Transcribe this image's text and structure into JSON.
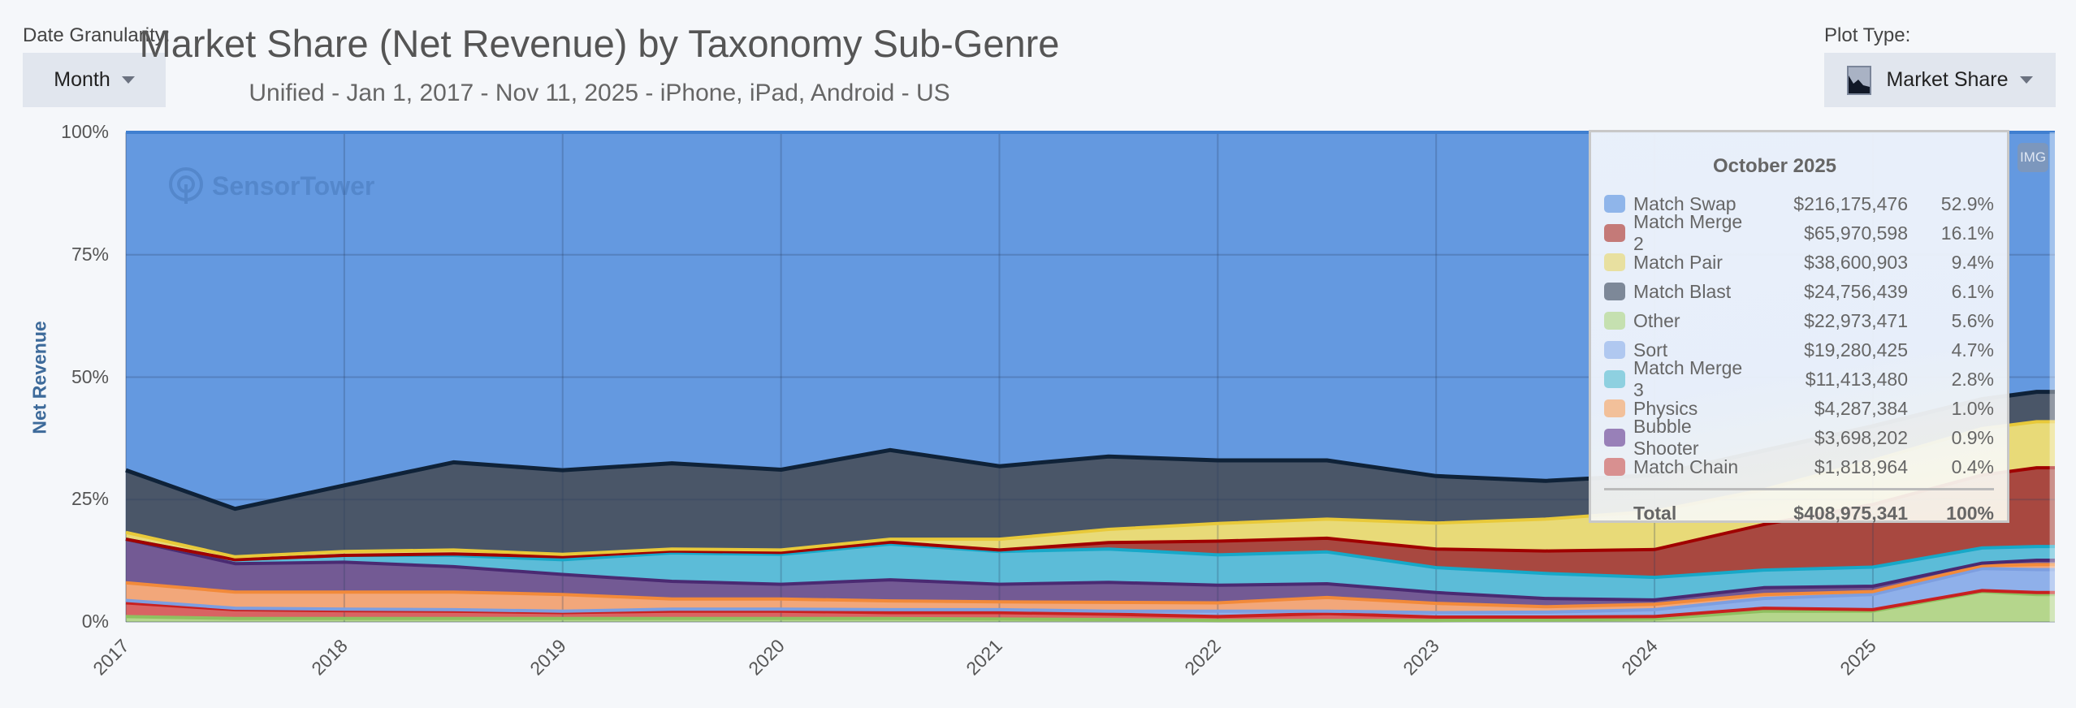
{
  "controls": {
    "date_granularity_label": "Date Granularity:",
    "date_granularity_value": "Month",
    "plot_type_label": "Plot Type:",
    "plot_type_value": "Market Share",
    "plot_type_icon": "area-chart-icon",
    "export_button": "IMG"
  },
  "watermark": "SensorTower",
  "tooltip": {
    "title": "October 2025",
    "rows": [
      {
        "name": "Match Swap",
        "revenue": "$216,175,476",
        "share": "52.9%",
        "color": "#8fb5ea"
      },
      {
        "name": "Match Merge 2",
        "revenue": "$65,970,598",
        "share": "16.1%",
        "color": "#c47a78"
      },
      {
        "name": "Match Pair",
        "revenue": "$38,600,903",
        "share": "9.4%",
        "color": "#e8e0a0"
      },
      {
        "name": "Match Blast",
        "revenue": "$24,756,439",
        "share": "6.1%",
        "color": "#7d8898"
      },
      {
        "name": "Other",
        "revenue": "$22,973,471",
        "share": "5.6%",
        "color": "#c5e0b0"
      },
      {
        "name": "Sort",
        "revenue": "$19,280,425",
        "share": "4.7%",
        "color": "#b0c8f0"
      },
      {
        "name": "Match Merge 3",
        "revenue": "$11,413,480",
        "share": "2.8%",
        "color": "#8ed0e0"
      },
      {
        "name": "Physics",
        "revenue": "$4,287,384",
        "share": "1.0%",
        "color": "#f2c09a"
      },
      {
        "name": "Bubble Shooter",
        "revenue": "$3,698,202",
        "share": "0.9%",
        "color": "#9880b8"
      },
      {
        "name": "Match Chain",
        "revenue": "$1,818,964",
        "share": "0.4%",
        "color": "#d89090"
      }
    ],
    "total_label": "Total",
    "total_revenue": "$408,975,341",
    "total_share": "100%"
  },
  "chart_data": {
    "type": "area",
    "stacked": "percent",
    "title": "Market Share (Net Revenue) by Taxonomy Sub-Genre",
    "subtitle": "Unified - Jan 1, 2017 - Nov 11, 2025 - iPhone, iPad, Android - US",
    "ylabel": "Net Revenue",
    "xlabel": "",
    "ylim": [
      0,
      100
    ],
    "xlim": [
      "2017-01",
      "2025-11"
    ],
    "y_ticks": [
      "0%",
      "25%",
      "50%",
      "75%",
      "100%"
    ],
    "x_ticks": [
      "2017",
      "2018",
      "2019",
      "2020",
      "2021",
      "2022",
      "2023",
      "2024",
      "2025"
    ],
    "grid": true,
    "x": [
      "2017-01",
      "2017-07",
      "2018-01",
      "2018-07",
      "2019-01",
      "2019-07",
      "2020-01",
      "2020-07",
      "2021-01",
      "2021-07",
      "2022-01",
      "2022-07",
      "2023-01",
      "2023-07",
      "2024-01",
      "2024-07",
      "2025-01",
      "2025-07",
      "2025-10"
    ],
    "series": [
      {
        "name": "Other",
        "fill": "#b5d68c",
        "line": "#8fc060",
        "values": [
          1.1,
          0.7,
          0.7,
          0.7,
          0.7,
          0.7,
          0.7,
          0.7,
          0.6,
          0.5,
          0.3,
          0.3,
          0.3,
          0.4,
          0.6,
          2.2,
          2.2,
          6.2,
          5.6
        ]
      },
      {
        "name": "Match Chain",
        "fill": "#d96363",
        "line": "#c82020",
        "values": [
          2.8,
          1.8,
          1.6,
          1.5,
          1.2,
          1.5,
          1.5,
          1.2,
          1.3,
          1.1,
          0.8,
          1.4,
          0.7,
          0.6,
          0.5,
          0.6,
          0.3,
          0.2,
          0.4
        ]
      },
      {
        "name": "Sort",
        "fill": "#8fb0ea",
        "line": "#7d9ee0",
        "values": [
          0.5,
          0.3,
          0.3,
          0.3,
          0.3,
          0.4,
          0.4,
          0.6,
          0.6,
          0.6,
          1.1,
          0.5,
          0.9,
          1.0,
          1.4,
          2.0,
          3.1,
          4.5,
          4.7
        ]
      },
      {
        "name": "Physics",
        "fill": "#f2a77a",
        "line": "#f28a3a",
        "values": [
          3.6,
          3.3,
          3.5,
          3.6,
          3.4,
          2.1,
          2.1,
          1.8,
          1.6,
          1.8,
          1.7,
          2.8,
          1.9,
          1.1,
          1.1,
          0.8,
          0.6,
          0.6,
          1.0
        ]
      },
      {
        "name": "Bubble Shooter",
        "fill": "#735a94",
        "line": "#4a2a72",
        "values": [
          8.9,
          5.8,
          6.1,
          5.2,
          4.1,
          3.6,
          3.0,
          4.3,
          3.6,
          4.1,
          3.6,
          2.8,
          2.2,
          1.7,
          0.9,
          1.4,
          1.1,
          0.5,
          0.9
        ]
      },
      {
        "name": "Match Merge 3",
        "fill": "#5cbcd8",
        "line": "#17a8c8",
        "values": [
          0,
          0.8,
          1.4,
          2.3,
          3.0,
          5.8,
          6.1,
          7.3,
          6.7,
          6.8,
          6.2,
          6.5,
          5.1,
          5.1,
          4.6,
          3.6,
          3.9,
          3.1,
          2.8
        ]
      },
      {
        "name": "Match Merge 2",
        "fill": "#a84840",
        "line": "#a00000",
        "values": [
          0,
          0,
          0,
          0.3,
          0.6,
          0.4,
          0.4,
          0.4,
          0.3,
          1.3,
          2.8,
          2.8,
          3.8,
          4.6,
          5.7,
          9.3,
          12.8,
          14.9,
          16.1
        ]
      },
      {
        "name": "Match Pair",
        "fill": "#e8da78",
        "line": "#e8c93a",
        "values": [
          1.4,
          0.6,
          0.8,
          0.8,
          0.5,
          0.4,
          0.5,
          0.6,
          2.2,
          2.7,
          3.6,
          3.9,
          5.3,
          6.5,
          7.8,
          7.1,
          9.0,
          9.5,
          9.4
        ]
      },
      {
        "name": "Match Blast",
        "fill": "#4a5668",
        "line": "#0f2238",
        "values": [
          12.7,
          9.8,
          13.5,
          17.9,
          17.2,
          17.5,
          16.4,
          18.2,
          14.9,
          14.9,
          12.9,
          12.0,
          9.6,
          7.8,
          7.4,
          8.0,
          7.0,
          6.0,
          6.1
        ]
      },
      {
        "name": "Match Swap",
        "fill": "#6499e0",
        "line": "#4a86d6",
        "values": [
          69.0,
          76.9,
          72.1,
          67.4,
          69.0,
          67.6,
          68.9,
          64.9,
          68.2,
          66.2,
          67.0,
          67.0,
          70.3,
          71.2,
          70.0,
          65.0,
          60.0,
          54.5,
          52.9
        ]
      }
    ]
  }
}
